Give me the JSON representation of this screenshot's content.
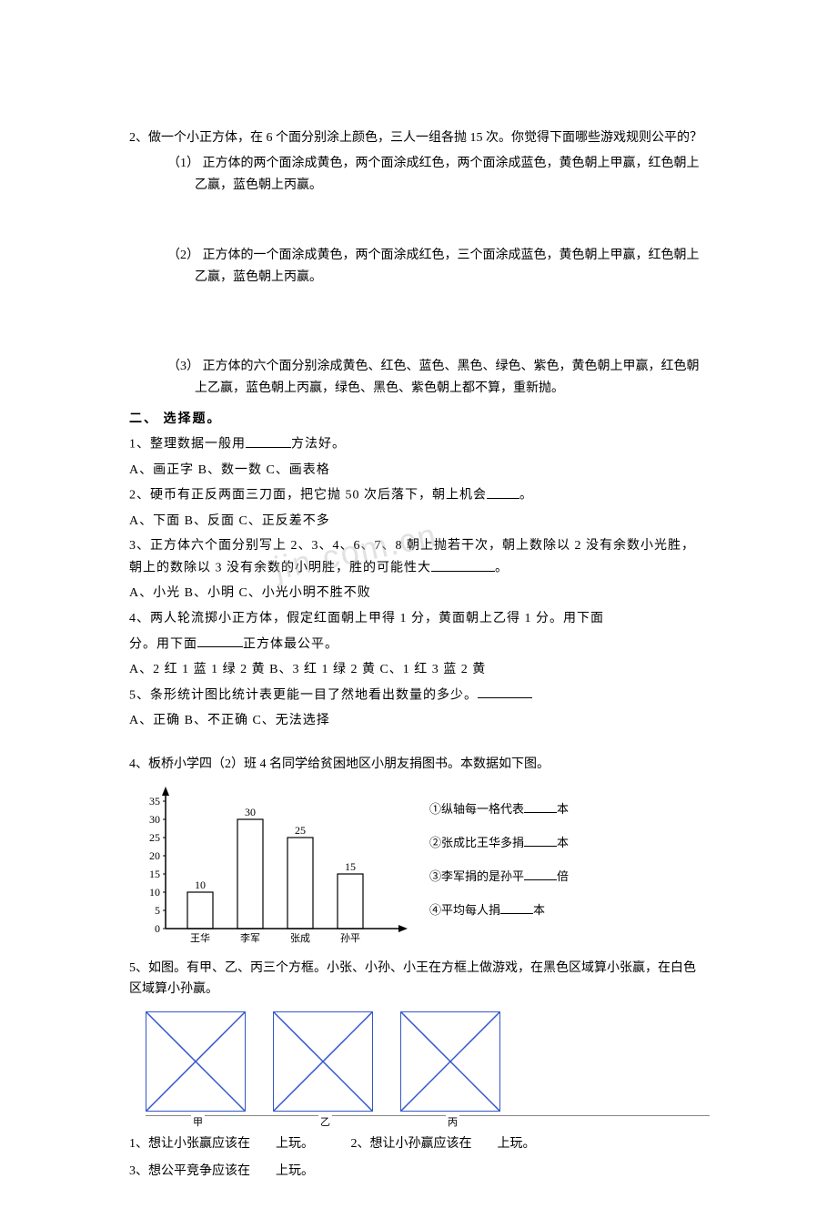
{
  "watermark": "jin.com.cn",
  "q2": {
    "stem": "2、做一个小正方体，在 6 个面分别涂上颜色，三人一组各抛 15 次。你觉得下面哪些游戏规则公平的？",
    "opt1": "（1） 正方体的两个面涂成黄色，两个面涂成红色，两个面涂成蓝色，黄色朝上甲赢，红色朝上乙赢，蓝色朝上丙赢。",
    "opt2": "（2） 正方体的一个面涂成黄色，两个面涂成红色，三个面涂成蓝色，黄色朝上甲赢，红色朝上乙赢，蓝色朝上丙赢。",
    "opt3": "（3） 正方体的六个面分别涂成黄色、红色、蓝色、黑色、绿色、紫色，黄色朝上甲赢，红色朝上乙赢，蓝色朝上丙赢，绿色、黑色、紫色朝上都不算，重新抛。"
  },
  "sec2": {
    "title": "二、 选择题。",
    "q1": {
      "stem": "1、整理数据一般用",
      "tail": "方法好。",
      "opts": "A、画正字 B、数一数 C、画表格"
    },
    "q2": {
      "stem": "2、硬币有正反两面三刀面，把它抛 50 次后落下，朝上机会",
      "tail": "。",
      "opts": "A、下面 B、反面 C、正反差不多"
    },
    "q3": {
      "stem": "3、正方体六个面分别写上 2、3、4、6、7、8 朝上抛若干次，朝上数除以 2 没有余数小光胜，朝上的数除以 3 没有余数的小明胜，胜的可能性大",
      "tail": "。",
      "opts": "A、小光 B、小明 C、小光小明不胜不败"
    },
    "q4": {
      "stem": "4、两人轮流掷小正方体，假定红面朝上甲得 1 分，黄面朝上乙得 1 分。用下面",
      "tail": "正方体最公平。",
      "opts": "A、2 红 1 蓝 1 绿 2 黄 B、3 红 1 绿 2 黄 C、1 红 3 蓝 2 黄"
    },
    "q5": {
      "stem": "5、条形统计图比统计表更能一目了然地看出数量的多少。",
      "opts": "A、正确 B、不正确 C、无法选择"
    }
  },
  "q4chart": {
    "stem": "4、板桥小学四（2）班 4 名同学给贫困地区小朋友捐图书。本数据如下图。",
    "yticks": [
      "35",
      "30",
      "25",
      "20",
      "15",
      "10",
      "5",
      "0"
    ],
    "names": [
      "王华",
      "李军",
      "张成",
      "孙平"
    ],
    "values": [
      10,
      30,
      25,
      15
    ],
    "barlabels": [
      "10",
      "30",
      "25",
      "15"
    ],
    "notes": {
      "n1a": "①纵轴每一格代表",
      "n1b": "本",
      "n2a": "②张成比王华多捐",
      "n2b": "本",
      "n3a": "③李军捐的是孙平",
      "n3b": "倍",
      "n4a": "④平均每人捐",
      "n4b": "本"
    }
  },
  "q5game": {
    "stem": "5、如图。有甲、乙、丙三个方框。小张、小孙、小王在方框上做游戏，在黑色区域算小张赢，在白色区域算小孙赢。",
    "labels": [
      "甲",
      "乙",
      "丙"
    ],
    "l1a": "1、想让小张赢应该在",
    "l1b": "上玩。",
    "l2a": "2、想让小孙赢应该在",
    "l2b": "上玩。",
    "l3a": "3、想公平竞争应该在",
    "l3b": "上玩。"
  }
}
